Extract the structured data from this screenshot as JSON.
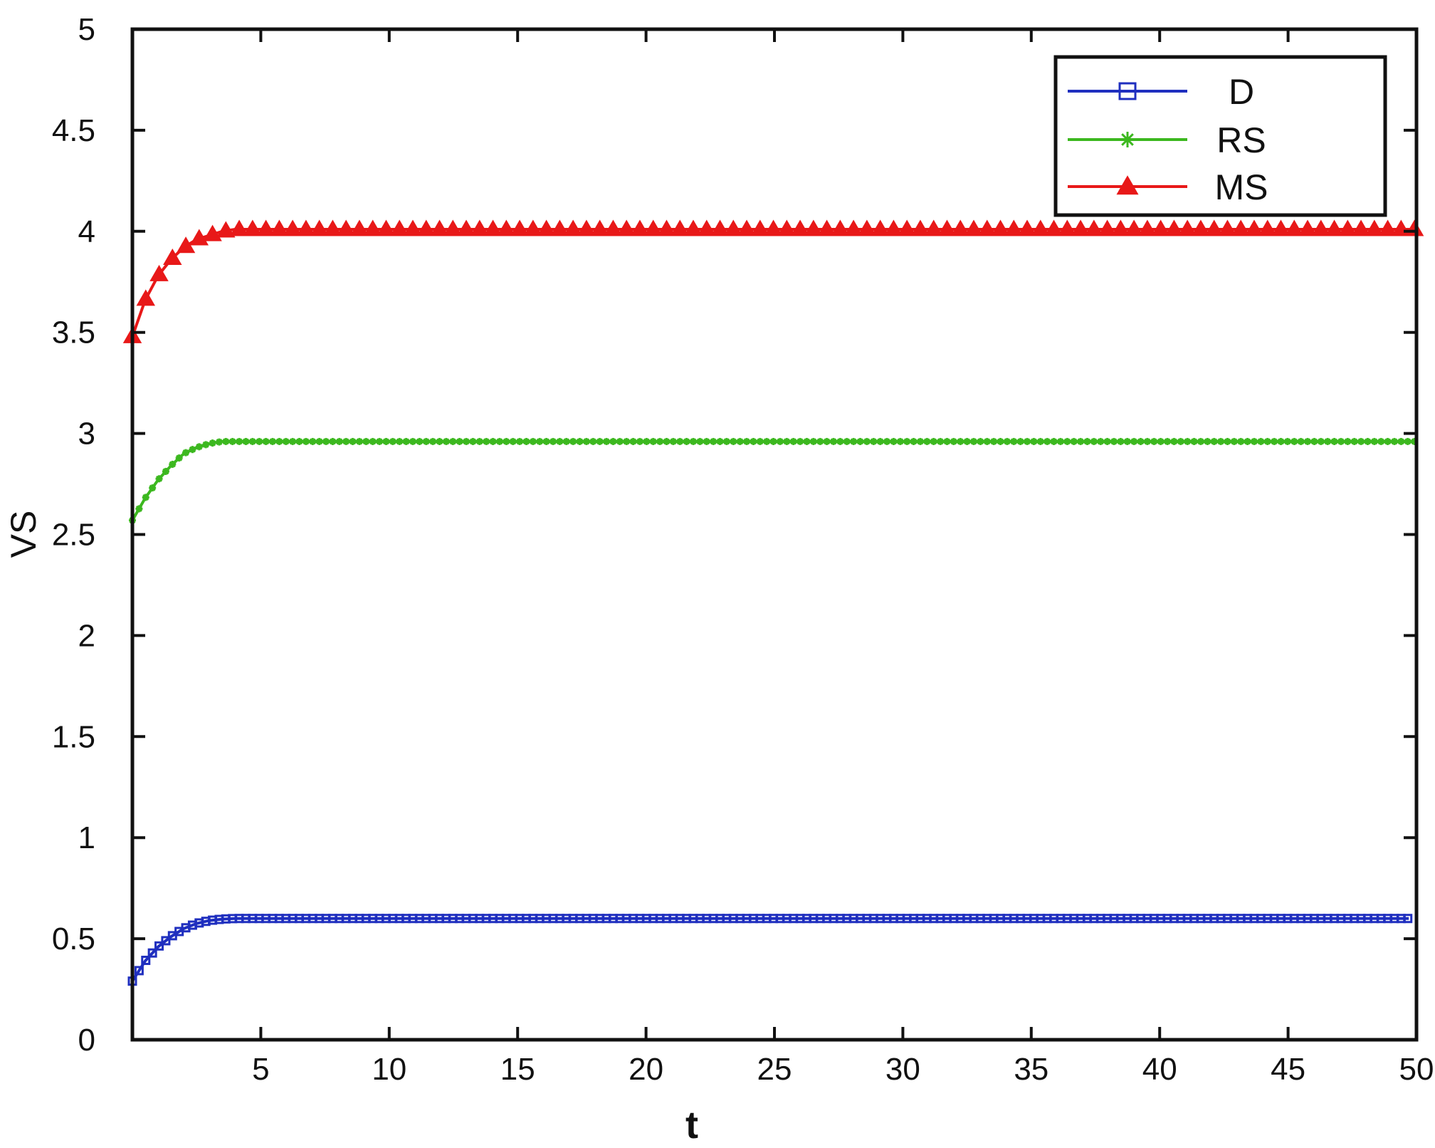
{
  "chart_data": {
    "type": "line",
    "title": "",
    "xlabel": "t",
    "ylabel": "VS",
    "xlim": [
      0,
      50
    ],
    "ylim": [
      0,
      5
    ],
    "xticks": [
      5,
      10,
      15,
      20,
      25,
      30,
      35,
      40,
      45,
      50
    ],
    "yticks": [
      0,
      0.5,
      1,
      1.5,
      2,
      2.5,
      3,
      3.5,
      4,
      4.5,
      5
    ],
    "x_tick_labels": [
      "5",
      "10",
      "15",
      "20",
      "25",
      "30",
      "35",
      "40",
      "45",
      "50"
    ],
    "y_tick_labels": [
      "0",
      "0.5",
      "1",
      "1.5",
      "2",
      "2.5",
      "3",
      "3.5",
      "4",
      "4.5",
      "5"
    ],
    "grid": false,
    "legend_position": "top-right",
    "series": [
      {
        "name": "D",
        "color": "#1f2fbf",
        "marker": "square",
        "x": [
          0,
          0.5,
          1,
          1.5,
          2,
          2.5,
          3,
          3.5,
          4,
          5,
          10,
          15,
          20,
          25,
          30,
          35,
          40,
          45,
          49.7
        ],
        "y": [
          0.29,
          0.39,
          0.46,
          0.51,
          0.55,
          0.575,
          0.59,
          0.597,
          0.6,
          0.6,
          0.6,
          0.6,
          0.6,
          0.6,
          0.6,
          0.6,
          0.6,
          0.6,
          0.6
        ]
      },
      {
        "name": "RS",
        "color": "#3cb81f",
        "marker": "star",
        "x": [
          0,
          0.5,
          1,
          1.5,
          2,
          2.5,
          3,
          3.5,
          4,
          5,
          10,
          15,
          20,
          25,
          30,
          35,
          40,
          45,
          50
        ],
        "y": [
          2.57,
          2.68,
          2.77,
          2.84,
          2.9,
          2.93,
          2.95,
          2.96,
          2.96,
          2.96,
          2.96,
          2.96,
          2.96,
          2.96,
          2.96,
          2.96,
          2.96,
          2.96,
          2.96
        ]
      },
      {
        "name": "MS",
        "color": "#e81818",
        "marker": "triangle",
        "x": [
          0,
          0.5,
          1,
          1.5,
          2,
          2.5,
          3,
          3.5,
          4,
          5,
          10,
          15,
          20,
          25,
          30,
          35,
          40,
          45,
          50
        ],
        "y": [
          3.48,
          3.66,
          3.78,
          3.86,
          3.92,
          3.96,
          3.98,
          4.0,
          4.01,
          4.01,
          4.01,
          4.01,
          4.01,
          4.01,
          4.01,
          4.01,
          4.01,
          4.01,
          4.01
        ]
      }
    ]
  }
}
